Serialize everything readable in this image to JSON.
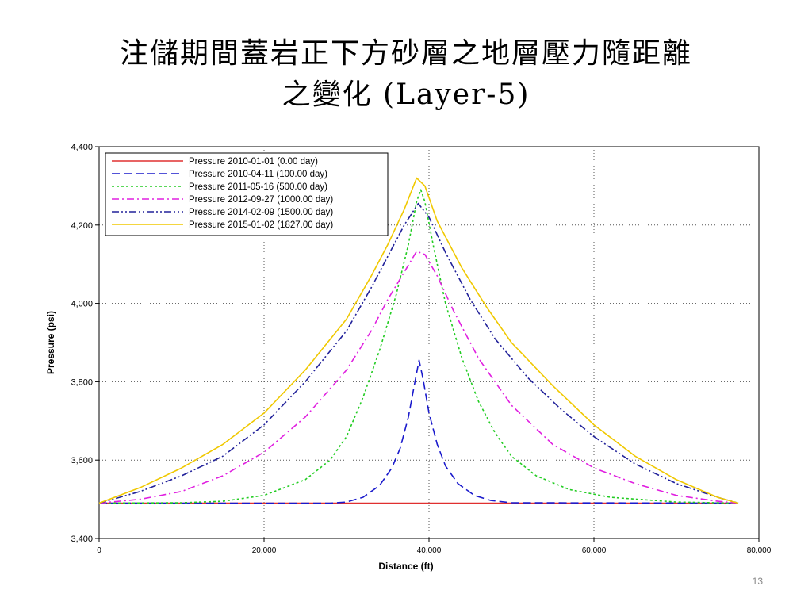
{
  "slide": {
    "title_line1": "注儲期間蓋岩正下方砂層之地層壓力隨距離",
    "title_line2": "之變化 (Layer-5)",
    "page_number": "13"
  },
  "chart_data": {
    "type": "line",
    "xlabel": "Distance (ft)",
    "ylabel": "Pressure (psi)",
    "xlim": [
      0,
      80000
    ],
    "ylim": [
      3400,
      4400
    ],
    "x_ticks": [
      0,
      20000,
      40000,
      60000,
      80000
    ],
    "x_tick_labels": [
      "0",
      "20,000",
      "40,000",
      "60,000",
      "80,000"
    ],
    "y_ticks": [
      3400,
      3600,
      3800,
      4000,
      4200,
      4400
    ],
    "y_tick_labels": [
      "3,400",
      "3,600",
      "3,800",
      "4,000",
      "4,200",
      "4,400"
    ],
    "grid": true,
    "legend_position": "top-left",
    "series": [
      {
        "name": "Pressure 2010-01-01 (0.00 day)",
        "color": "#e03030",
        "dash": "solid",
        "points": [
          [
            0,
            3490
          ],
          [
            77500,
            3490
          ]
        ]
      },
      {
        "name": "Pressure 2010-04-11 (100.00 day)",
        "color": "#1a1acc",
        "dash": "longdash",
        "points": [
          [
            0,
            3490
          ],
          [
            28000,
            3490
          ],
          [
            30000,
            3493
          ],
          [
            32000,
            3505
          ],
          [
            34000,
            3535
          ],
          [
            35500,
            3580
          ],
          [
            36500,
            3630
          ],
          [
            37500,
            3710
          ],
          [
            38300,
            3800
          ],
          [
            38800,
            3855
          ],
          [
            39300,
            3805
          ],
          [
            40000,
            3720
          ],
          [
            41000,
            3640
          ],
          [
            42000,
            3585
          ],
          [
            43500,
            3540
          ],
          [
            45500,
            3510
          ],
          [
            47500,
            3497
          ],
          [
            50000,
            3491
          ],
          [
            77500,
            3490
          ]
        ]
      },
      {
        "name": "Pressure 2011-05-16 (500.00 day)",
        "color": "#22cc22",
        "dash": "dotted",
        "points": [
          [
            0,
            3490
          ],
          [
            10000,
            3491
          ],
          [
            15000,
            3495
          ],
          [
            20000,
            3510
          ],
          [
            25000,
            3550
          ],
          [
            28000,
            3600
          ],
          [
            30000,
            3660
          ],
          [
            32000,
            3760
          ],
          [
            34000,
            3880
          ],
          [
            36000,
            4020
          ],
          [
            37500,
            4150
          ],
          [
            38500,
            4260
          ],
          [
            39000,
            4290
          ],
          [
            39500,
            4260
          ],
          [
            40500,
            4150
          ],
          [
            42000,
            4000
          ],
          [
            44000,
            3860
          ],
          [
            46000,
            3750
          ],
          [
            48000,
            3670
          ],
          [
            50000,
            3610
          ],
          [
            53000,
            3560
          ],
          [
            57000,
            3525
          ],
          [
            62000,
            3505
          ],
          [
            70000,
            3493
          ],
          [
            77500,
            3490
          ]
        ]
      },
      {
        "name": "Pressure 2012-09-27 (1000.00 day)",
        "color": "#e020e0",
        "dash": "dashdot",
        "points": [
          [
            0,
            3490
          ],
          [
            5000,
            3500
          ],
          [
            10000,
            3520
          ],
          [
            15000,
            3560
          ],
          [
            20000,
            3620
          ],
          [
            25000,
            3710
          ],
          [
            30000,
            3830
          ],
          [
            33000,
            3930
          ],
          [
            35000,
            4010
          ],
          [
            37000,
            4080
          ],
          [
            38500,
            4133
          ],
          [
            39500,
            4125
          ],
          [
            41000,
            4070
          ],
          [
            43000,
            3980
          ],
          [
            46000,
            3860
          ],
          [
            50000,
            3740
          ],
          [
            55000,
            3640
          ],
          [
            60000,
            3580
          ],
          [
            65000,
            3540
          ],
          [
            70000,
            3510
          ],
          [
            75000,
            3495
          ],
          [
            77500,
            3490
          ]
        ]
      },
      {
        "name": "Pressure 2014-02-09 (1500.00 day)",
        "color": "#22229a",
        "dash": "dashdotdot",
        "points": [
          [
            0,
            3490
          ],
          [
            5000,
            3520
          ],
          [
            10000,
            3560
          ],
          [
            15000,
            3610
          ],
          [
            20000,
            3690
          ],
          [
            25000,
            3800
          ],
          [
            30000,
            3930
          ],
          [
            33000,
            4040
          ],
          [
            35000,
            4120
          ],
          [
            37000,
            4200
          ],
          [
            38700,
            4255
          ],
          [
            40000,
            4220
          ],
          [
            42000,
            4130
          ],
          [
            45000,
            4010
          ],
          [
            48000,
            3910
          ],
          [
            52000,
            3810
          ],
          [
            56000,
            3730
          ],
          [
            60000,
            3660
          ],
          [
            65000,
            3590
          ],
          [
            70000,
            3540
          ],
          [
            75000,
            3505
          ],
          [
            77500,
            3490
          ]
        ]
      },
      {
        "name": "Pressure 2015-01-02 (1827.00 day)",
        "color": "#f0c800",
        "dash": "solid",
        "points": [
          [
            0,
            3490
          ],
          [
            5000,
            3530
          ],
          [
            10000,
            3580
          ],
          [
            15000,
            3640
          ],
          [
            20000,
            3720
          ],
          [
            25000,
            3830
          ],
          [
            30000,
            3960
          ],
          [
            33000,
            4070
          ],
          [
            35000,
            4150
          ],
          [
            37000,
            4240
          ],
          [
            38500,
            4320
          ],
          [
            39500,
            4300
          ],
          [
            41000,
            4210
          ],
          [
            44000,
            4090
          ],
          [
            47000,
            3990
          ],
          [
            50000,
            3900
          ],
          [
            55000,
            3790
          ],
          [
            60000,
            3690
          ],
          [
            65000,
            3610
          ],
          [
            70000,
            3550
          ],
          [
            75000,
            3505
          ],
          [
            77500,
            3490
          ]
        ]
      }
    ]
  }
}
